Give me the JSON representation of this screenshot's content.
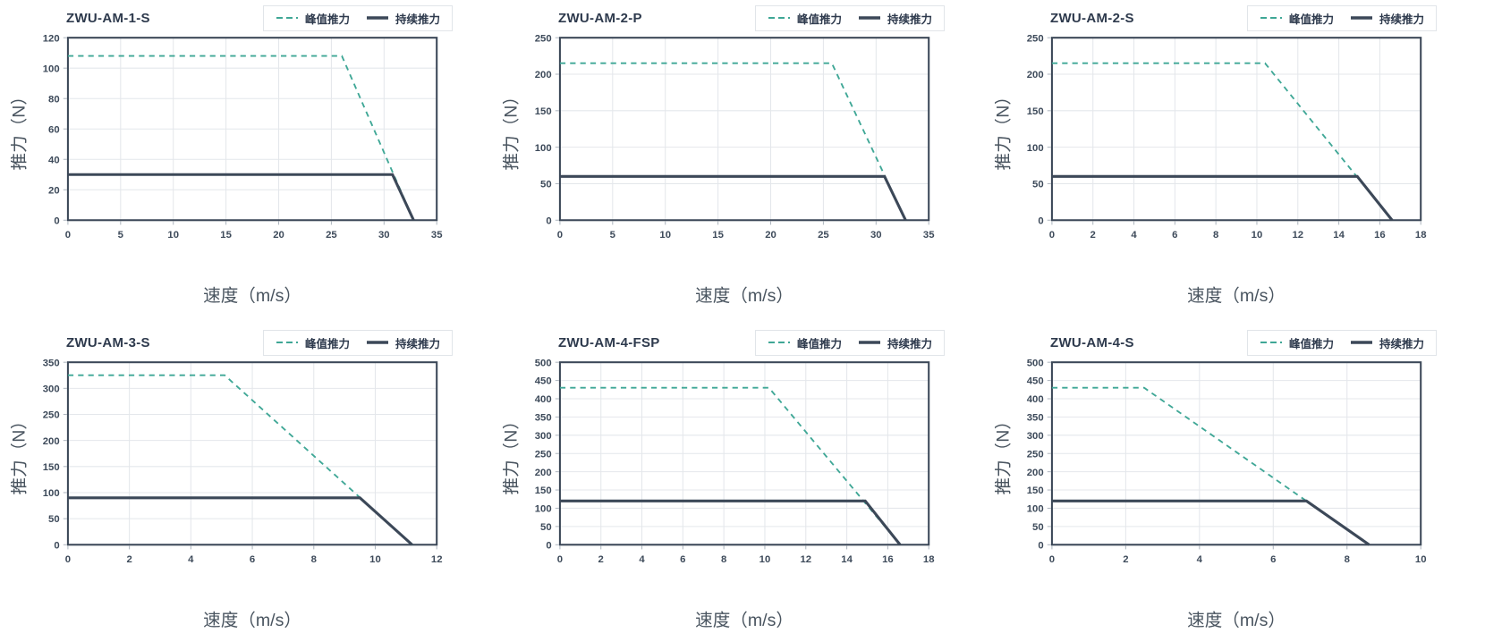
{
  "legend": {
    "peak_label": "峰值推力",
    "cont_label": "持续推力"
  },
  "axes": {
    "x_label": "速度（m/s）",
    "y_label": "推力（N）"
  },
  "colors": {
    "peak": "#3FA796",
    "continuous": "#3C4858",
    "frame": "#3C4858",
    "grid": "#E4E7EB",
    "tick": "#AEB6BF",
    "tick_label": "#3D4A5A",
    "axis_title": "#4A5560",
    "title": "#2E3A4D",
    "legend_border": "#E1E5E9",
    "background": "#FFFFFF"
  },
  "chart_data": [
    {
      "type": "line",
      "title": "ZWU-AM-1-S",
      "xlabel": "速度（m/s）",
      "ylabel": "推力（N）",
      "xlim": [
        0,
        35
      ],
      "xticks": [
        0,
        5,
        10,
        15,
        20,
        25,
        30,
        35
      ],
      "ylim": [
        0,
        120
      ],
      "yticks": [
        0,
        20,
        40,
        60,
        80,
        100,
        120
      ],
      "grid": true,
      "legend_position": "top-right",
      "series": [
        {
          "name": "峰值推力",
          "style": "dashed",
          "points": [
            [
              0,
              108
            ],
            [
              26,
              108
            ],
            [
              32.8,
              0
            ]
          ]
        },
        {
          "name": "持续推力",
          "style": "solid",
          "points": [
            [
              0,
              30
            ],
            [
              30.8,
              30
            ],
            [
              32.8,
              0
            ]
          ]
        }
      ]
    },
    {
      "type": "line",
      "title": "ZWU-AM-2-P",
      "xlabel": "速度（m/s）",
      "ylabel": "推力（N）",
      "xlim": [
        0,
        35
      ],
      "xticks": [
        0,
        5,
        10,
        15,
        20,
        25,
        30,
        35
      ],
      "ylim": [
        0,
        250
      ],
      "yticks": [
        0,
        50,
        100,
        150,
        200,
        250
      ],
      "grid": true,
      "legend_position": "top-right",
      "series": [
        {
          "name": "峰值推力",
          "style": "dashed",
          "points": [
            [
              0,
              215
            ],
            [
              25.8,
              215
            ],
            [
              32.8,
              0
            ]
          ]
        },
        {
          "name": "持续推力",
          "style": "solid",
          "points": [
            [
              0,
              60
            ],
            [
              30.8,
              60
            ],
            [
              32.8,
              0
            ]
          ]
        }
      ]
    },
    {
      "type": "line",
      "title": "ZWU-AM-2-S",
      "xlabel": "速度（m/s）",
      "ylabel": "推力（N）",
      "xlim": [
        0,
        18
      ],
      "xticks": [
        0,
        2,
        4,
        6,
        8,
        10,
        12,
        14,
        16,
        18
      ],
      "ylim": [
        0,
        250
      ],
      "yticks": [
        0,
        50,
        100,
        150,
        200,
        250
      ],
      "grid": true,
      "legend_position": "top-right",
      "series": [
        {
          "name": "峰值推力",
          "style": "dashed",
          "points": [
            [
              0,
              215
            ],
            [
              10.4,
              215
            ],
            [
              16.6,
              0
            ]
          ]
        },
        {
          "name": "持续推力",
          "style": "solid",
          "points": [
            [
              0,
              60
            ],
            [
              14.9,
              60
            ],
            [
              16.6,
              0
            ]
          ]
        }
      ]
    },
    {
      "type": "line",
      "title": "ZWU-AM-3-S",
      "xlabel": "速度（m/s）",
      "ylabel": "推力（N）",
      "xlim": [
        0,
        12
      ],
      "xticks": [
        0,
        2,
        4,
        6,
        8,
        10,
        12
      ],
      "ylim": [
        0,
        350
      ],
      "yticks": [
        0,
        50,
        100,
        150,
        200,
        250,
        300,
        350
      ],
      "grid": true,
      "legend_position": "top-right",
      "series": [
        {
          "name": "峰值推力",
          "style": "dashed",
          "points": [
            [
              0,
              325
            ],
            [
              5.1,
              325
            ],
            [
              11.2,
              0
            ]
          ]
        },
        {
          "name": "持续推力",
          "style": "solid",
          "points": [
            [
              0,
              90
            ],
            [
              9.5,
              90
            ],
            [
              11.2,
              0
            ]
          ]
        }
      ]
    },
    {
      "type": "line",
      "title": "ZWU-AM-4-FSP",
      "xlabel": "速度（m/s）",
      "ylabel": "推力（N）",
      "xlim": [
        0,
        18
      ],
      "xticks": [
        0,
        2,
        4,
        6,
        8,
        10,
        12,
        14,
        16,
        18
      ],
      "ylim": [
        0,
        500
      ],
      "yticks": [
        0,
        50,
        100,
        150,
        200,
        250,
        300,
        350,
        400,
        450,
        500
      ],
      "grid": true,
      "legend_position": "top-right",
      "series": [
        {
          "name": "峰值推力",
          "style": "dashed",
          "points": [
            [
              0,
              430
            ],
            [
              10.2,
              430
            ],
            [
              16.6,
              0
            ]
          ]
        },
        {
          "name": "持续推力",
          "style": "solid",
          "points": [
            [
              0,
              120
            ],
            [
              14.9,
              120
            ],
            [
              16.6,
              0
            ]
          ]
        }
      ]
    },
    {
      "type": "line",
      "title": "ZWU-AM-4-S",
      "xlabel": "速度（m/s）",
      "ylabel": "推力（N）",
      "xlim": [
        0,
        10
      ],
      "xticks": [
        0,
        2,
        4,
        6,
        8,
        10
      ],
      "ylim": [
        0,
        500
      ],
      "yticks": [
        0,
        50,
        100,
        150,
        200,
        250,
        300,
        350,
        400,
        450,
        500
      ],
      "grid": true,
      "legend_position": "top-right",
      "series": [
        {
          "name": "峰值推力",
          "style": "dashed",
          "points": [
            [
              0,
              430
            ],
            [
              2.5,
              430
            ],
            [
              8.6,
              0
            ]
          ]
        },
        {
          "name": "持续推力",
          "style": "solid",
          "points": [
            [
              0,
              120
            ],
            [
              6.9,
              120
            ],
            [
              8.6,
              0
            ]
          ]
        }
      ]
    }
  ]
}
